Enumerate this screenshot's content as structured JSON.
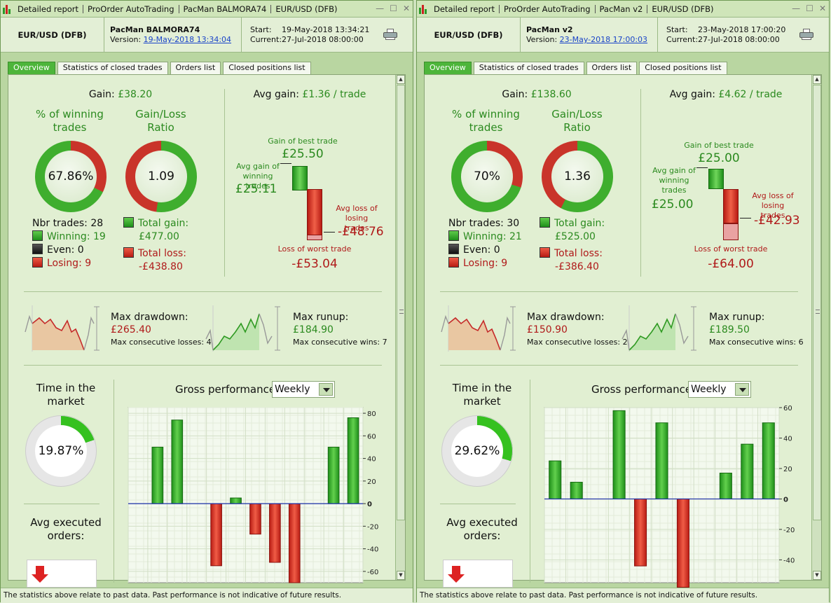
{
  "footer_text": "The statistics above relate to past data. Past performance is not indicative of future results.",
  "panels": [
    {
      "window": {
        "title_segments": [
          "Detailed report",
          "ProOrder AutoTrading",
          "PacMan BALMORA74",
          "EUR/USD (DFB)"
        ]
      },
      "header": {
        "instrument": "EUR/USD (DFB)",
        "system_name": "PacMan BALMORA74",
        "version_label": "Version:",
        "version_link": "19-May-2018 13:34:04",
        "start_label": "Start:",
        "start_value": "19-May-2018 13:34:21",
        "current_label": "Current:",
        "current_value": "27-Jul-2018 08:00:00"
      },
      "tabs": [
        "Overview",
        "Statistics of closed trades",
        "Orders list",
        "Closed positions list"
      ],
      "gain": {
        "label": "Gain:",
        "value": "£38.20"
      },
      "avg_gain": {
        "label": "Avg gain:",
        "value": "£1.36 / trade"
      },
      "winning": {
        "title": "% of winning trades",
        "value": "67.86%",
        "fraction": 0.6786
      },
      "ratio": {
        "title": "Gain/Loss Ratio",
        "value": "1.09",
        "fraction": 0.5215
      },
      "counts": {
        "nbr": "Nbr trades: 28",
        "winning": "Winning: 19",
        "even": "Even: 0",
        "losing": "Losing: 9"
      },
      "totals": {
        "gain_label": "Total gain:",
        "gain": "£477.00",
        "loss_label": "Total loss:",
        "loss": "-£438.80"
      },
      "best_worst": {
        "best_label": "Gain of best trade",
        "best": "£25.50",
        "avg_win_label": "Avg gain of winning trades",
        "avg_win": "£25.11",
        "avg_loss_label": "Avg loss of losing trades",
        "avg_loss": "-£48.76",
        "worst_label": "Loss of worst trade",
        "worst": "-£53.04"
      },
      "drawdown": {
        "label": "Max drawdown:",
        "value": "£265.40",
        "sub": "Max consecutive losses: 4"
      },
      "runup": {
        "label": "Max runup:",
        "value": "£184.90",
        "sub": "Max consecutive wins: 7"
      },
      "time_market": {
        "title": "Time in the market",
        "value": "19.87%",
        "fraction": 0.1987
      },
      "avg_orders": {
        "title": "Avg executed orders:"
      },
      "perf": {
        "title": "Gross performance",
        "select": "Weekly"
      },
      "chart_data": {
        "type": "bar",
        "title": "Gross performance",
        "ylim": [
          -70,
          85
        ],
        "yticks": [
          80,
          60,
          40,
          20,
          0,
          -20,
          -40,
          -60
        ],
        "values": [
          0,
          50,
          74,
          0,
          -55,
          5,
          -27,
          -52,
          -70,
          0,
          50,
          76
        ]
      }
    },
    {
      "window": {
        "title_segments": [
          "Detailed report",
          "ProOrder AutoTrading",
          "PacMan v2",
          "EUR/USD (DFB)"
        ]
      },
      "header": {
        "instrument": "EUR/USD (DFB)",
        "system_name": "PacMan v2",
        "version_label": "Version:",
        "version_link": "23-May-2018 17:00:03",
        "start_label": "Start:",
        "start_value": "23-May-2018 17:00:20",
        "current_label": "Current:",
        "current_value": "27-Jul-2018 08:00:00"
      },
      "tabs": [
        "Overview",
        "Statistics of closed trades",
        "Orders list",
        "Closed positions list"
      ],
      "gain": {
        "label": "Gain:",
        "value": "£138.60"
      },
      "avg_gain": {
        "label": "Avg gain:",
        "value": "£4.62 / trade"
      },
      "winning": {
        "title": "% of winning trades",
        "value": "70%",
        "fraction": 0.7
      },
      "ratio": {
        "title": "Gain/Loss Ratio",
        "value": "1.36",
        "fraction": 0.576
      },
      "counts": {
        "nbr": "Nbr trades: 30",
        "winning": "Winning: 21",
        "even": "Even: 0",
        "losing": "Losing: 9"
      },
      "totals": {
        "gain_label": "Total gain:",
        "gain": "£525.00",
        "loss_label": "Total loss:",
        "loss": "-£386.40"
      },
      "best_worst": {
        "best_label": "Gain of best trade",
        "best": "£25.00",
        "avg_win_label": "Avg gain of winning trades",
        "avg_win": "£25.00",
        "avg_loss_label": "Avg loss of losing trades",
        "avg_loss": "-£42.93",
        "worst_label": "Loss of worst trade",
        "worst": "-£64.00"
      },
      "drawdown": {
        "label": "Max drawdown:",
        "value": "£150.90",
        "sub": "Max consecutive losses: 2"
      },
      "runup": {
        "label": "Max runup:",
        "value": "£189.50",
        "sub": "Max consecutive wins: 6"
      },
      "time_market": {
        "title": "Time in the market",
        "value": "29.62%",
        "fraction": 0.2962
      },
      "avg_orders": {
        "title": "Avg executed orders:"
      },
      "perf": {
        "title": "Gross performance",
        "select": "Weekly"
      },
      "chart_data": {
        "type": "bar",
        "title": "Gross performance",
        "ylim": [
          -55,
          60
        ],
        "yticks": [
          60,
          40,
          20,
          0,
          -20,
          -40
        ],
        "values": [
          25,
          11,
          0,
          58,
          -44,
          50,
          -58,
          0,
          17,
          36,
          50
        ]
      }
    }
  ]
}
